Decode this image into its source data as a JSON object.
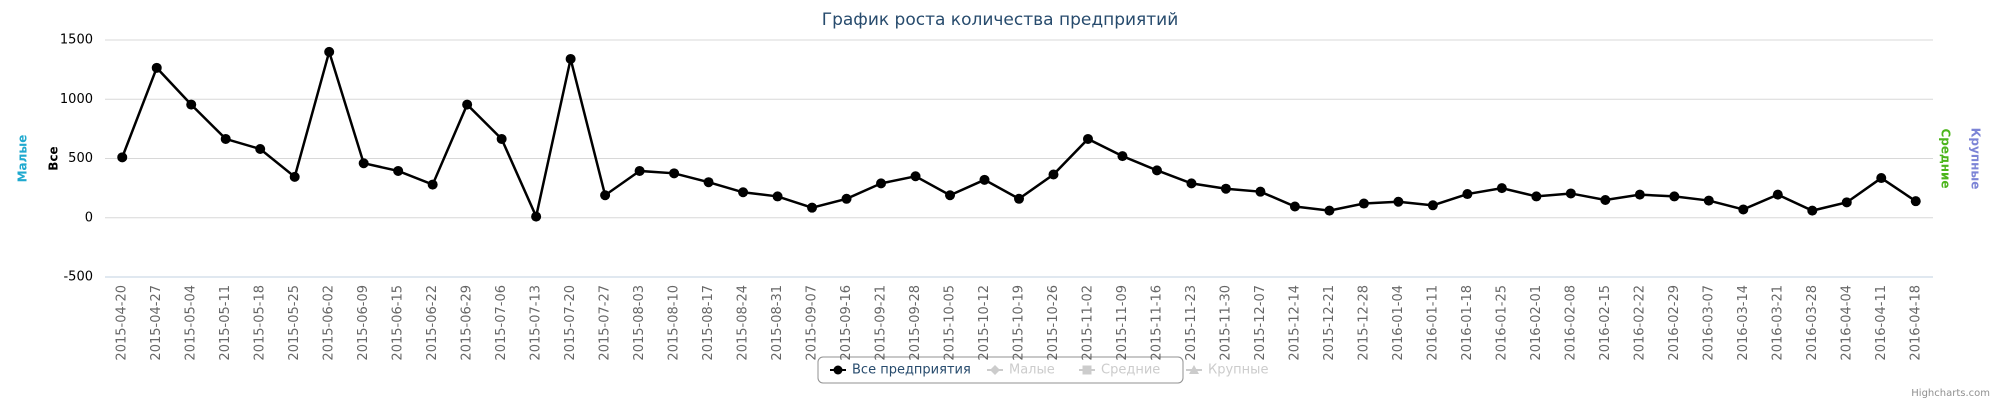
{
  "chart_data": {
    "type": "line",
    "title": "График роста количества предприятий",
    "categories": [
      "2015-04-20",
      "2015-04-27",
      "2015-05-04",
      "2015-05-11",
      "2015-05-18",
      "2015-05-25",
      "2015-06-02",
      "2015-06-09",
      "2015-06-15",
      "2015-06-22",
      "2015-06-29",
      "2015-07-06",
      "2015-07-13",
      "2015-07-20",
      "2015-07-27",
      "2015-08-03",
      "2015-08-10",
      "2015-08-17",
      "2015-08-24",
      "2015-08-31",
      "2015-09-07",
      "2015-09-16",
      "2015-09-21",
      "2015-09-28",
      "2015-10-05",
      "2015-10-12",
      "2015-10-19",
      "2015-10-26",
      "2015-11-02",
      "2015-11-09",
      "2015-11-16",
      "2015-11-23",
      "2015-11-30",
      "2015-12-07",
      "2015-12-14",
      "2015-12-21",
      "2015-12-28",
      "2016-01-04",
      "2016-01-11",
      "2016-01-18",
      "2016-01-25",
      "2016-02-01",
      "2016-02-08",
      "2016-02-15",
      "2016-02-22",
      "2016-02-29",
      "2016-03-07",
      "2016-03-14",
      "2016-03-21",
      "2016-03-28",
      "2016-04-04",
      "2016-04-11",
      "2016-04-18"
    ],
    "series": [
      {
        "name": "Все предприятия",
        "color": "#000000",
        "visible": true,
        "values": [
          510,
          1265,
          955,
          665,
          580,
          345,
          1400,
          460,
          395,
          280,
          955,
          665,
          10,
          1340,
          190,
          395,
          375,
          300,
          215,
          180,
          85,
          160,
          290,
          350,
          190,
          320,
          160,
          365,
          665,
          520,
          400,
          290,
          245,
          220,
          95,
          60,
          120,
          135,
          105,
          200,
          250,
          180,
          205,
          150,
          195,
          180,
          145,
          70,
          195,
          60,
          130,
          335,
          140
        ]
      },
      {
        "name": "Малые",
        "color": "#1fa9cf",
        "visible": false
      },
      {
        "name": "Средние",
        "color": "#4cb51c",
        "visible": false
      },
      {
        "name": "Крупные",
        "color": "#7c84d6",
        "visible": false
      }
    ],
    "y_axis_titles": [
      {
        "text": "Малые",
        "color": "#1fa9cf",
        "side": "left"
      },
      {
        "text": "Все",
        "color": "#000000",
        "side": "left"
      },
      {
        "text": "Средние",
        "color": "#4cb51c",
        "side": "right"
      },
      {
        "text": "Крупные",
        "color": "#7c84d6",
        "side": "right"
      }
    ],
    "ylim": [
      -500,
      1500
    ],
    "yticks": [
      -500,
      0,
      500,
      1000,
      1500
    ],
    "grid": true,
    "legend": "bottom",
    "credits": "Highcharts.com"
  }
}
